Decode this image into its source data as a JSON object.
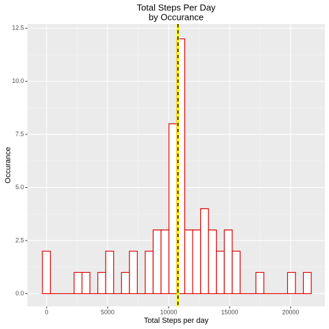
{
  "chart_data": {
    "type": "histogram",
    "title": "Total Steps Per Day",
    "subtitle": "by Occurance",
    "x_label": "Total Steps per day",
    "y_label": "Occurance",
    "bins": [
      -340,
      308,
      956,
      1604,
      2252,
      2900,
      3548,
      4196,
      4844,
      5492,
      6140,
      6788,
      7436,
      8084,
      8732,
      9380,
      10028,
      10676,
      11324,
      11972,
      12620,
      13268,
      13916,
      14564,
      15212,
      15860,
      16508,
      17156,
      17804,
      18452,
      19100,
      19748,
      20396,
      21044,
      21692
    ],
    "values": [
      2,
      0,
      0,
      0,
      1,
      1,
      0,
      1,
      2,
      0,
      1,
      2,
      0,
      2,
      3,
      3,
      8,
      12,
      3,
      3,
      4,
      3,
      2,
      3,
      2,
      0,
      0,
      1,
      0,
      0,
      0,
      1,
      0,
      1
    ],
    "color": "#e00000",
    "fill": "#ffffff",
    "vline": 10766,
    "vline_color": "#ffff00",
    "xlim": [
      -1573,
      22809
    ],
    "xticks": [
      0,
      5000,
      10000,
      15000,
      20000
    ],
    "ylim": [
      -0.6,
      12.7
    ],
    "yticks": [
      {
        "value": 0,
        "label": "0.0"
      },
      {
        "value": 2.5,
        "label": "2.5"
      },
      {
        "value": 5,
        "label": "5.0"
      },
      {
        "value": 7.5,
        "label": "7.5"
      },
      {
        "value": 10,
        "label": "10.0"
      },
      {
        "value": 12.5,
        "label": "12.5"
      }
    ],
    "grid": true
  }
}
